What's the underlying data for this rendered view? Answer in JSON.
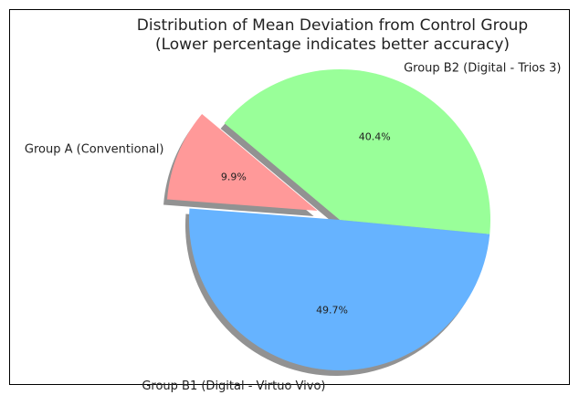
{
  "chart_data": {
    "type": "pie",
    "title": "Distribution of Mean Deviation from Control Group",
    "subtitle": "(Lower percentage indicates better accuracy)",
    "slices": [
      {
        "label": "Group A (Conventional)",
        "value": 9.9,
        "pct_label": "9.9%",
        "color": "#ff9999",
        "exploded": true
      },
      {
        "label": "Group B1 (Digital - Virtuo Vivo)",
        "value": 49.7,
        "pct_label": "49.7%",
        "color": "#66b3ff",
        "exploded": false
      },
      {
        "label": "Group B2 (Digital - Trios 3)",
        "value": 40.4,
        "pct_label": "40.4%",
        "color": "#99ff99",
        "exploded": false
      }
    ],
    "start_angle_deg": 140,
    "shadow": true,
    "legend": "none"
  }
}
